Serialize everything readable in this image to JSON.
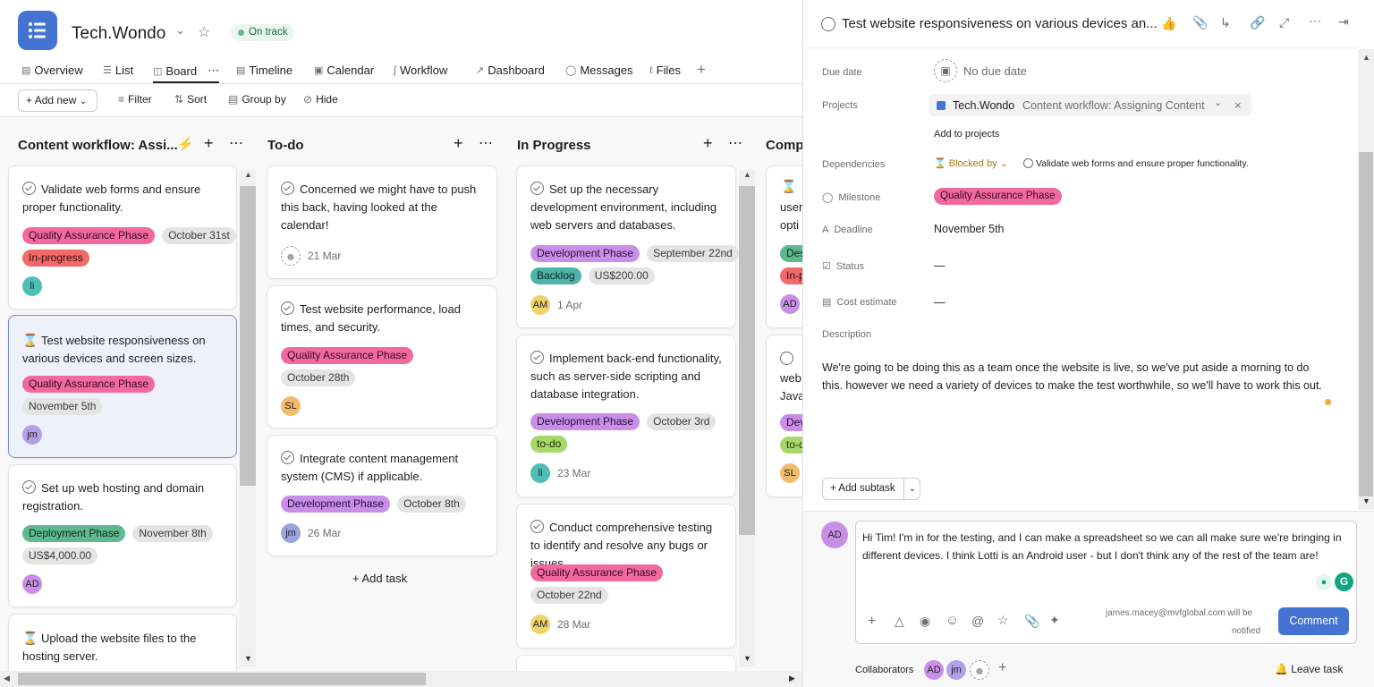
{
  "project": {
    "name": "Tech.Wondo",
    "status": "On track"
  },
  "tabs": [
    "Overview",
    "List",
    "Board",
    "Timeline",
    "Calendar",
    "Workflow",
    "Dashboard",
    "Messages",
    "Files"
  ],
  "toolbar": {
    "add_new": "Add new",
    "filter": "Filter",
    "sort": "Sort",
    "group_by": "Group by",
    "hide": "Hide"
  },
  "columns": [
    {
      "title": "Content workflow: Assi...",
      "cards": [
        {
          "title": "Validate web forms and ensure proper functionality.",
          "tags": [
            "Quality Assurance Phase",
            "October 31st",
            "In-progress"
          ],
          "avatar": "li"
        },
        {
          "title": "Test website responsiveness on various devices and screen sizes.",
          "tags": [
            "Quality Assurance Phase",
            "November 5th"
          ],
          "avatar": "jm"
        },
        {
          "title": "Set up web hosting and domain registration.",
          "tags": [
            "Deployment Phase",
            "November 8th",
            "US$4,000.00"
          ],
          "avatar": "AD"
        },
        {
          "title": "Upload the website files to the hosting server."
        }
      ]
    },
    {
      "title": "To-do",
      "cards": [
        {
          "title": "Concerned we might have to push this back, having looked at the calendar!",
          "date": "21 Mar"
        },
        {
          "title": "Test website performance, load times, and security.",
          "tags": [
            "Quality Assurance Phase",
            "October 28th"
          ],
          "avatar": "SL"
        },
        {
          "title": "Integrate content management system (CMS) if applicable.",
          "tags": [
            "Development Phase",
            "October 8th"
          ],
          "avatar": "jm",
          "date": "26 Mar"
        }
      ],
      "add_task": "+ Add task"
    },
    {
      "title": "In Progress",
      "cards": [
        {
          "title": "Set up the necessary development environment, including web servers and databases.",
          "tags": [
            "Development Phase",
            "September 22nd",
            "Backlog",
            "US$200.00"
          ],
          "avatar": "AM",
          "date": "1 Apr"
        },
        {
          "title": "Implement back-end functionality, such as server-side scripting and database integration.",
          "tags": [
            "Development Phase",
            "October 3rd",
            "to-do"
          ],
          "avatar": "li",
          "date": "23 Mar"
        },
        {
          "title": "Conduct comprehensive testing to identify and resolve any bugs or issues.",
          "tags": [
            "Quality Assurance Phase",
            "October 22nd"
          ],
          "avatar": "AM",
          "date": "28 Mar"
        }
      ]
    },
    {
      "title": "Comp",
      "cards": [
        {
          "title": "user",
          "title2": "opti",
          "tags": [
            "Des",
            "In-p"
          ],
          "avatar": "AD"
        },
        {
          "title": "web",
          "title2": "Java",
          "tags": [
            "Dev",
            "to-d"
          ],
          "avatar": "SL"
        }
      ]
    }
  ],
  "task_pane": {
    "title": "Test website responsiveness on various devices an...",
    "fields": {
      "due_date_label": "Due date",
      "due_date": "No due date",
      "projects_label": "Projects",
      "project_name": "Tech.Wondo",
      "project_section": "Content workflow: Assigning Content",
      "add_to_projects": "Add to projects",
      "dependencies_label": "Dependencies",
      "blocked_by": "Blocked by",
      "blocked_task": "Validate web forms and ensure proper functionality.",
      "milestone_label": "Milestone",
      "milestone": "Quality Assurance Phase",
      "deadline_label": "Deadline",
      "deadline": "November 5th",
      "status_label": "Status",
      "status": "—",
      "cost_label": "Cost estimate",
      "cost": "—",
      "description_label": "Description"
    },
    "description": "We're going to be doing this as a team once the website is live, so we've put aside a morning to do this. however we need a variety of devices to make the test worthwhile, so we'll have to work this out.",
    "add_subtask": "Add subtask",
    "comment_text": "Hi Tim! I'm in for the testing, and I can make a spreadsheet so we can all make sure we're bringing in different devices. I think Lotti is an Android user - but I don't think any of the rest of the team are!",
    "notify_email": "james.macey@mvfglobal.com will be",
    "notify_suffix": "notified",
    "comment_button": "Comment",
    "collaborators_label": "Collaborators",
    "leave_task": "Leave task",
    "commenter_avatar": "AD",
    "collaborators": [
      "AD",
      "jm"
    ]
  }
}
